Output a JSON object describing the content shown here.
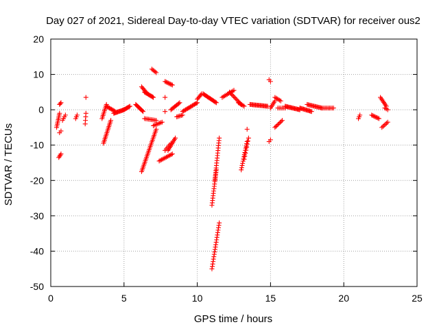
{
  "chart_data": {
    "type": "scatter",
    "title": "Day 027 of 2021, Sidereal Day-to-day VTEC variation (SDTVAR) for receiver ous2",
    "xlabel": "GPS time / hours",
    "ylabel": "SDTVAR / TECUs",
    "xlim": [
      0,
      25
    ],
    "ylim": [
      -50,
      20
    ],
    "xticks": [
      0,
      5,
      10,
      15,
      20,
      25
    ],
    "yticks": [
      -50,
      -40,
      -30,
      -20,
      -10,
      0,
      10,
      20
    ],
    "xtick_labels": [
      "0",
      "5",
      "10",
      "15",
      "20",
      "25"
    ],
    "ytick_labels": [
      "-50",
      "-40",
      "-30",
      "-20",
      "-10",
      "0",
      "10",
      "20"
    ],
    "grid": true,
    "marker": "plus",
    "color": "#ff0000",
    "segments": [
      {
        "x0": 0.4,
        "x1": 0.6,
        "y0": -5,
        "y1": -1,
        "n": 10
      },
      {
        "x0": 0.55,
        "x1": 0.7,
        "y0": -13.5,
        "y1": -12.5,
        "n": 4
      },
      {
        "x0": 0.6,
        "x1": 0.7,
        "y0": 1.5,
        "y1": 2,
        "n": 3
      },
      {
        "x0": 0.6,
        "x1": 0.7,
        "y0": -6.5,
        "y1": -6,
        "n": 2
      },
      {
        "x0": 0.8,
        "x1": 1.0,
        "y0": -3,
        "y1": -1.5,
        "n": 4
      },
      {
        "x0": 1.7,
        "x1": 1.8,
        "y0": -2.5,
        "y1": -1.5,
        "n": 3
      },
      {
        "x0": 2.35,
        "x1": 2.4,
        "y0": -4,
        "y1": -1,
        "n": 4
      },
      {
        "x0": 2.4,
        "x1": 2.4,
        "y0": 3.5,
        "y1": 3.5,
        "n": 1
      },
      {
        "x0": 3.5,
        "x1": 3.8,
        "y0": -2.5,
        "y1": 1.5,
        "n": 10
      },
      {
        "x0": 3.6,
        "x1": 4.1,
        "y0": -9.5,
        "y1": -3,
        "n": 16
      },
      {
        "x0": 3.8,
        "x1": 4.4,
        "y0": 1,
        "y1": -0.5,
        "n": 10
      },
      {
        "x0": 4.3,
        "x1": 5.0,
        "y0": -1,
        "y1": 0,
        "n": 14
      },
      {
        "x0": 5.0,
        "x1": 5.4,
        "y0": 0,
        "y1": 1,
        "n": 8
      },
      {
        "x0": 5.8,
        "x1": 6.3,
        "y0": 1.5,
        "y1": -0.5,
        "n": 10
      },
      {
        "x0": 6.2,
        "x1": 6.5,
        "y0": 6.5,
        "y1": 5,
        "n": 6
      },
      {
        "x0": 6.4,
        "x1": 7.0,
        "y0": 5,
        "y1": 3.5,
        "n": 12
      },
      {
        "x0": 6.2,
        "x1": 7.2,
        "y0": -17.5,
        "y1": -5.5,
        "n": 28
      },
      {
        "x0": 6.4,
        "x1": 7.2,
        "y0": -2.5,
        "y1": -3,
        "n": 10
      },
      {
        "x0": 6.9,
        "x1": 7.2,
        "y0": 11.5,
        "y1": 10.5,
        "n": 5
      },
      {
        "x0": 7.0,
        "x1": 7.6,
        "y0": -4.5,
        "y1": -3.5,
        "n": 8
      },
      {
        "x0": 7.4,
        "x1": 8.3,
        "y0": -14.5,
        "y1": -12.5,
        "n": 12
      },
      {
        "x0": 7.8,
        "x1": 8.3,
        "y0": 8,
        "y1": 7,
        "n": 8
      },
      {
        "x0": 7.8,
        "x1": 7.8,
        "y0": 3.5,
        "y1": 3.5,
        "n": 1
      },
      {
        "x0": 7.8,
        "x1": 7.8,
        "y0": -0.5,
        "y1": -0.5,
        "n": 1
      },
      {
        "x0": 7.8,
        "x1": 8.2,
        "y0": -11.5,
        "y1": -9.5,
        "n": 6
      },
      {
        "x0": 8.0,
        "x1": 8.5,
        "y0": -11.5,
        "y1": -8,
        "n": 10
      },
      {
        "x0": 8.2,
        "x1": 8.8,
        "y0": 0,
        "y1": 2,
        "n": 10
      },
      {
        "x0": 8.6,
        "x1": 9.0,
        "y0": -2,
        "y1": -1.5,
        "n": 6
      },
      {
        "x0": 9.0,
        "x1": 10.0,
        "y0": -0.5,
        "y1": 2,
        "n": 16
      },
      {
        "x0": 10.0,
        "x1": 10.3,
        "y0": 3,
        "y1": 4.5,
        "n": 6
      },
      {
        "x0": 10.4,
        "x1": 11.3,
        "y0": 4.5,
        "y1": 2,
        "n": 16
      },
      {
        "x0": 11.0,
        "x1": 11.3,
        "y0": -27,
        "y1": -17,
        "n": 16
      },
      {
        "x0": 11.2,
        "x1": 11.5,
        "y0": -20,
        "y1": -8,
        "n": 18
      },
      {
        "x0": 11.0,
        "x1": 11.5,
        "y0": -45,
        "y1": -32,
        "n": 20
      },
      {
        "x0": 11.7,
        "x1": 12.5,
        "y0": 3.5,
        "y1": 5.5,
        "n": 10
      },
      {
        "x0": 12.2,
        "x1": 13.0,
        "y0": 5,
        "y1": 1.5,
        "n": 12
      },
      {
        "x0": 12.8,
        "x1": 13.2,
        "y0": 2,
        "y1": 1,
        "n": 6
      },
      {
        "x0": 13.0,
        "x1": 13.4,
        "y0": -17,
        "y1": -9,
        "n": 14
      },
      {
        "x0": 13.2,
        "x1": 13.5,
        "y0": -14,
        "y1": -8,
        "n": 8
      },
      {
        "x0": 13.4,
        "x1": 13.4,
        "y0": -5.5,
        "y1": -5.5,
        "n": 1
      },
      {
        "x0": 13.6,
        "x1": 14.8,
        "y0": 1.5,
        "y1": 1,
        "n": 20
      },
      {
        "x0": 14.9,
        "x1": 15.0,
        "y0": 8.5,
        "y1": 8,
        "n": 2
      },
      {
        "x0": 14.9,
        "x1": 15.0,
        "y0": -9,
        "y1": -8.5,
        "n": 2
      },
      {
        "x0": 15.0,
        "x1": 15.3,
        "y0": 0.5,
        "y1": 2.5,
        "n": 6
      },
      {
        "x0": 15.3,
        "x1": 15.7,
        "y0": 3.5,
        "y1": 2.5,
        "n": 6
      },
      {
        "x0": 15.3,
        "x1": 15.8,
        "y0": -5,
        "y1": -3,
        "n": 8
      },
      {
        "x0": 15.5,
        "x1": 16.0,
        "y0": 0.5,
        "y1": 0.5,
        "n": 6
      },
      {
        "x0": 16.0,
        "x1": 17.0,
        "y0": 1,
        "y1": 0,
        "n": 18
      },
      {
        "x0": 17.0,
        "x1": 17.8,
        "y0": 0.5,
        "y1": -0.5,
        "n": 14
      },
      {
        "x0": 17.5,
        "x1": 18.5,
        "y0": 1.5,
        "y1": 0.5,
        "n": 16
      },
      {
        "x0": 18.5,
        "x1": 19.3,
        "y0": 0.5,
        "y1": 0.5,
        "n": 10
      },
      {
        "x0": 21.0,
        "x1": 21.1,
        "y0": -2.5,
        "y1": -1.5,
        "n": 3
      },
      {
        "x0": 21.9,
        "x1": 22.4,
        "y0": -1.5,
        "y1": -2.5,
        "n": 8
      },
      {
        "x0": 22.5,
        "x1": 22.9,
        "y0": 3.5,
        "y1": 1,
        "n": 8
      },
      {
        "x0": 22.8,
        "x1": 23.0,
        "y0": 0.5,
        "y1": 0,
        "n": 3
      },
      {
        "x0": 22.6,
        "x1": 23.0,
        "y0": -5,
        "y1": -3.5,
        "n": 6
      }
    ]
  }
}
